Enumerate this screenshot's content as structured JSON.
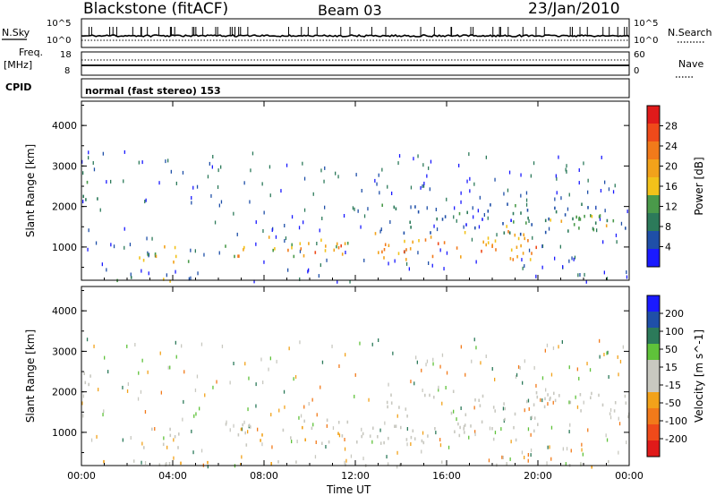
{
  "header": {
    "station": "Blackstone (fitACF)",
    "beam": "Beam 03",
    "date": "23/Jan/2010"
  },
  "top_panels": {
    "nsky": {
      "label": "N.Sky",
      "ticks": [
        "10^5",
        "10^0"
      ]
    },
    "nsearch": {
      "label": "N.Search",
      "ticks": [
        "10^5",
        "10^0"
      ]
    },
    "freq": {
      "label_line1": "Freq.",
      "label_line2": "[MHz]",
      "ticks": [
        "18",
        "8"
      ]
    },
    "nave": {
      "label": "Nave",
      "ticks": [
        "60",
        "0"
      ]
    },
    "cpid": {
      "label": "CPID",
      "value": "normal (fast stereo) 153"
    }
  },
  "colors": {
    "power": [
      "#1a1aff",
      "#1f4fa8",
      "#2c7a5a",
      "#4a9a4a",
      "#f2c21a",
      "#f2a21a",
      "#f27a1a",
      "#ef4a1a",
      "#e01a1a"
    ],
    "velocity": [
      "#e01a1a",
      "#ef4a1a",
      "#f27a1a",
      "#f2a21a",
      "#c8c8c0",
      "#c8c8c0",
      "#5fc23a",
      "#2c7a5a",
      "#1f4fa8",
      "#1a1aff"
    ],
    "ground_scatter": "#c8c8c0"
  },
  "chart_data": [
    {
      "type": "heatmap",
      "name": "power",
      "xlabel": "",
      "ylabel": "Slant Range [km]",
      "xlim": [
        "00:00",
        "24:00"
      ],
      "ylim": [
        180,
        4600
      ],
      "yticks": [
        "1000",
        "2000",
        "3000",
        "4000"
      ],
      "colorbar": {
        "label": "Power [dB]",
        "ticks": [
          "4",
          "8",
          "12",
          "16",
          "20",
          "24",
          "28"
        ],
        "range": [
          0,
          30
        ]
      },
      "x_unit": "hour UT",
      "regions": [
        {
          "t": [
            0.0,
            1.2
          ],
          "r": [
            2150,
            2650
          ],
          "v": 8
        },
        {
          "t": [
            2.5,
            4.8
          ],
          "r": [
            650,
            1200
          ],
          "v": 14
        },
        {
          "t": [
            3.0,
            4.2
          ],
          "r": [
            800,
            1050
          ],
          "v": 20
        },
        {
          "t": [
            6.2,
            12.0
          ],
          "r": [
            750,
            1300
          ],
          "v": 16
        },
        {
          "t": [
            6.8,
            11.5
          ],
          "r": [
            800,
            1100
          ],
          "v": 21
        },
        {
          "t": [
            12.6,
            20.0
          ],
          "r": [
            700,
            1450
          ],
          "v": 18
        },
        {
          "t": [
            13.0,
            20.0
          ],
          "r": [
            850,
            1150
          ],
          "v": 23
        },
        {
          "t": [
            13.0,
            24.0
          ],
          "r": [
            1350,
            2100
          ],
          "v": 7
        },
        {
          "t": [
            18.5,
            24.0
          ],
          "r": [
            1500,
            1850
          ],
          "v": 14
        },
        {
          "t": [
            0.0,
            4.0
          ],
          "r": [
            180,
            330
          ],
          "v": 12
        }
      ]
    },
    {
      "type": "heatmap",
      "name": "velocity",
      "xlabel": "Time UT",
      "ylabel": "Slant Range [km]",
      "xlim": [
        "00:00",
        "24:00"
      ],
      "ylim": [
        180,
        4600
      ],
      "yticks": [
        "1000",
        "2000",
        "3000",
        "4000"
      ],
      "xticks": [
        "00:00",
        "04:00",
        "08:00",
        "12:00",
        "16:00",
        "20:00",
        "00:00"
      ],
      "colorbar": {
        "label": "Velocity [m s^-1]",
        "ticks": [
          "200",
          "100",
          "50",
          "15",
          "-15",
          "-50",
          "-100",
          "-200"
        ]
      },
      "x_unit": "hour UT",
      "regions": [
        {
          "t": [
            0.0,
            1.2
          ],
          "r": [
            2150,
            2650
          ],
          "v": 0
        },
        {
          "t": [
            2.5,
            4.8
          ],
          "r": [
            650,
            1200
          ],
          "v": 0
        },
        {
          "t": [
            6.0,
            12.5
          ],
          "r": [
            700,
            1350
          ],
          "v": -40
        },
        {
          "t": [
            12.6,
            20.0
          ],
          "r": [
            750,
            1450
          ],
          "v": 0
        },
        {
          "t": [
            13.0,
            24.0
          ],
          "r": [
            1350,
            2050
          ],
          "v": 0
        },
        {
          "t": [
            22.0,
            24.0
          ],
          "r": [
            1700,
            1950
          ],
          "v": 0
        },
        {
          "t": [
            0.0,
            24.0
          ],
          "r": [
            180,
            330
          ],
          "v": -40
        }
      ]
    }
  ]
}
